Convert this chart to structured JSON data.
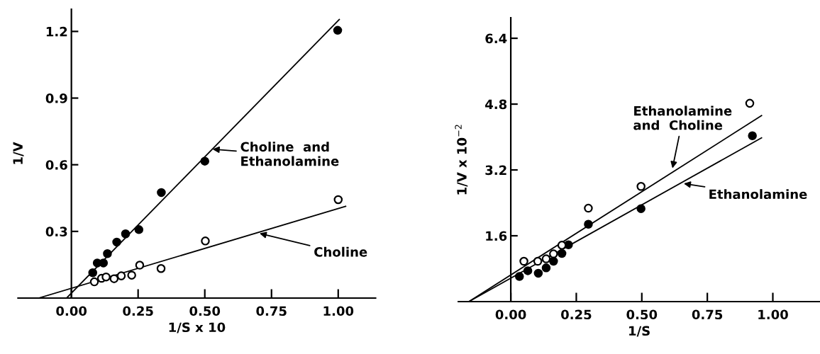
{
  "chart_data": [
    {
      "type": "scatter",
      "xlabel": "1/S x 10",
      "ylabel": "1/V",
      "xlim": [
        -0.2,
        1.14
      ],
      "ylim": [
        0,
        1.3
      ],
      "xticks": [
        {
          "value": 0,
          "label": "0.00"
        },
        {
          "value": 0.25,
          "label": "0.25"
        },
        {
          "value": 0.5,
          "label": "0.50"
        },
        {
          "value": 0.75,
          "label": "0.75"
        },
        {
          "value": 1,
          "label": "1.00"
        }
      ],
      "yticks": [
        0.3,
        0.6,
        0.9,
        1.2
      ],
      "grid": false,
      "legend": false,
      "series": [
        {
          "marker": "circle",
          "color": "#000000",
          "x": [
            0.08,
            0.097,
            0.12,
            0.135,
            0.17,
            0.203,
            0.253,
            0.337,
            0.5,
            0.998
          ],
          "values": [
            0.114,
            0.158,
            0.158,
            0.2,
            0.252,
            0.289,
            0.308,
            0.475,
            0.616,
            1.205
          ]
        },
        {
          "marker": "circle",
          "color": "#ffffff",
          "x": [
            0.086,
            0.113,
            0.13,
            0.16,
            0.187,
            0.226,
            0.256,
            0.336,
            0.502,
            1.0
          ],
          "values": [
            0.073,
            0.089,
            0.095,
            0.087,
            0.1,
            0.103,
            0.148,
            0.133,
            0.257,
            0.443
          ]
        },
        {
          "type": "line",
          "color": "#000000",
          "x": [
            -0.018,
            1.004
          ],
          "values": [
            0,
            1.254
          ]
        },
        {
          "type": "line",
          "color": "#000000",
          "x": [
            -0.123,
            1.028
          ],
          "values": [
            0,
            0.413
          ]
        }
      ],
      "annotations": [
        {
          "text": "Choline  and\nEthanolamine",
          "x": 0.529,
          "y": 0.67
        },
        {
          "text": "Choline",
          "x": 0.705,
          "y": 0.291
        }
      ]
    },
    {
      "type": "scatter",
      "xlabel": "1/S",
      "ylabel": "1/V x 10$^{−2}$",
      "xlim": [
        -0.2,
        1.18
      ],
      "ylim": [
        0,
        6.9
      ],
      "xticks": [
        {
          "value": 0,
          "label": "0.00"
        },
        {
          "value": 0.25,
          "label": "0.25"
        },
        {
          "value": 0.5,
          "label": "0.50"
        },
        {
          "value": 0.75,
          "label": "0.75"
        },
        {
          "value": 1,
          "label": "1.00"
        }
      ],
      "yticks": [
        1.6,
        3.2,
        4.8,
        6.4
      ],
      "grid": false,
      "legend": false,
      "series": [
        {
          "marker": "circle",
          "color": "#000000",
          "x": [
            0.033,
            0.065,
            0.105,
            0.135,
            0.163,
            0.195,
            0.22,
            0.296,
            0.497,
            0.922
          ],
          "values": [
            0.61,
            0.75,
            0.69,
            0.82,
            0.98,
            1.17,
            1.38,
            1.88,
            2.26,
            4.03
          ]
        },
        {
          "marker": "circle",
          "color": "#ffffff",
          "x": [
            0.05,
            0.103,
            0.135,
            0.163,
            0.195,
            0.296,
            0.497,
            0.912
          ],
          "values": [
            0.98,
            0.98,
            1.04,
            1.16,
            1.37,
            2.27,
            2.8,
            4.82
          ]
        },
        {
          "type": "line",
          "color": "#000000",
          "x": [
            -0.16,
            0.957
          ],
          "values": [
            0,
            4.52
          ]
        },
        {
          "type": "line",
          "color": "#000000",
          "x": [
            -0.16,
            0.957
          ],
          "values": [
            0,
            3.98
          ]
        }
      ],
      "annotations": [
        {
          "text": "Ethanolamine\nand  Choline",
          "x": 0.617,
          "y": 3.24
        },
        {
          "text": "Ethanolamine",
          "x": 0.66,
          "y": 2.87
        }
      ]
    }
  ]
}
